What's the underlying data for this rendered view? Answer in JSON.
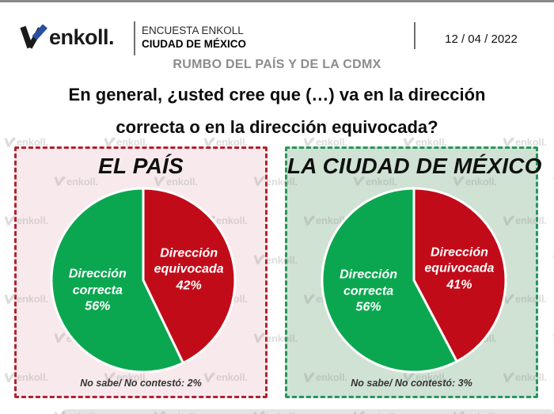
{
  "header": {
    "brand": "enkoll.",
    "survey_line1": "ENCUESTA ENKOLL",
    "survey_line2": "CIUDAD DE MÉXICO",
    "date": "12 / 04 / 2022",
    "section_title": "RUMBO DEL PAÍS Y DE LA CDMX"
  },
  "question": {
    "line1": "En general, ¿usted cree que (…) va en la dirección",
    "line2": "correcta o en la dirección equivocada?"
  },
  "watermark": {
    "label": "enkoll."
  },
  "colors": {
    "brand_blue": "#2b4fa0",
    "brand_black": "#1a1a1a",
    "topbar_gray": "#8a8a8a",
    "pie_green": "#0ba750",
    "pie_red": "#c20b19"
  },
  "chart_data": [
    {
      "type": "pie",
      "title": "EL PAÍS",
      "slices": [
        {
          "label": "Dirección equivocada",
          "value": 42,
          "color": "#c20b19",
          "label_lines": [
            "Dirección",
            "equivocada",
            "42%"
          ]
        },
        {
          "label": "Dirección correcta",
          "value": 56,
          "color": "#0ba750",
          "label_lines": [
            "Dirección",
            "correcta",
            "56%"
          ]
        }
      ],
      "no_answer_pct": 2,
      "footnote": "No sabe/ No contestó: 2%",
      "panel_bg": "#f8eaec",
      "panel_border": "#b22230",
      "start": "12-oclock",
      "direction": "clockwise"
    },
    {
      "type": "pie",
      "title": "LA CIUDAD DE MÉXICO",
      "slices": [
        {
          "label": "Dirección equivocada",
          "value": 41,
          "color": "#c20b19",
          "label_lines": [
            "Dirección",
            "equivocada",
            "41%"
          ]
        },
        {
          "label": "Dirección correcta",
          "value": 56,
          "color": "#0ba750",
          "label_lines": [
            "Dirección",
            "correcta",
            "56%"
          ]
        }
      ],
      "no_answer_pct": 3,
      "footnote": "No sabe/ No contestó: 3%",
      "panel_bg": "#cfe2d4",
      "panel_border": "#27975c",
      "start": "12-oclock",
      "direction": "clockwise"
    }
  ]
}
